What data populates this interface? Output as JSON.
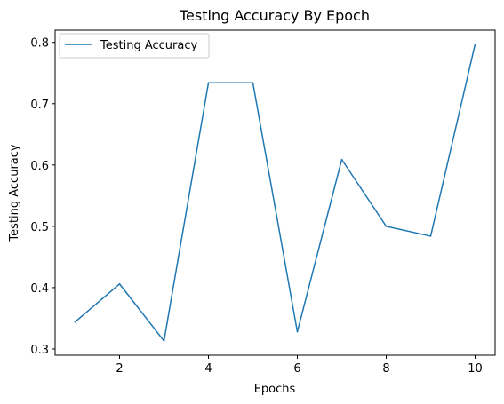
{
  "chart_data": {
    "type": "line",
    "title": "Testing Accuracy By Epoch",
    "xlabel": "Epochs",
    "ylabel": "Testing Accuracy",
    "x": [
      1,
      2,
      3,
      4,
      5,
      6,
      7,
      8,
      9,
      10
    ],
    "series": [
      {
        "name": "Testing Accuracy",
        "color": "#1f77b4",
        "values": [
          0.344,
          0.406,
          0.313,
          0.734,
          0.734,
          0.328,
          0.609,
          0.5,
          0.484,
          0.797
        ]
      }
    ],
    "xlim": [
      0.55,
      10.45
    ],
    "ylim": [
      0.2898,
      0.8199
    ],
    "xticks": [
      2,
      4,
      6,
      8,
      10
    ],
    "xtick_labels": [
      "2",
      "4",
      "6",
      "8",
      "10"
    ],
    "yticks": [
      0.3,
      0.4,
      0.5,
      0.6,
      0.7,
      0.8
    ],
    "ytick_labels": [
      "0.3",
      "0.4",
      "0.5",
      "0.6",
      "0.7",
      "0.8"
    ],
    "grid": false,
    "legend_position": "top-left"
  }
}
